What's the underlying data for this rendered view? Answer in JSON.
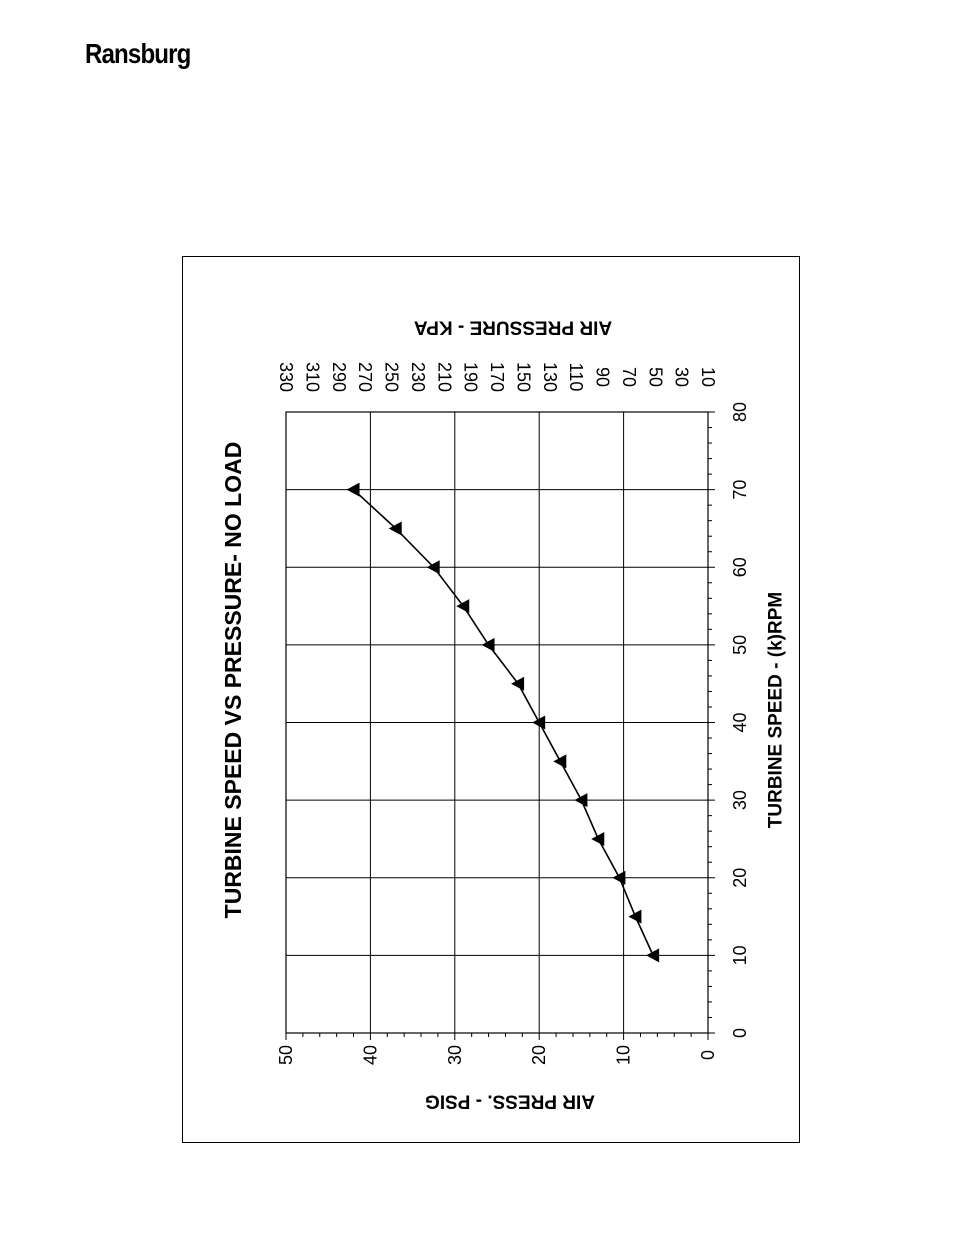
{
  "header": {
    "brand": "Ransburg"
  },
  "chart_data": {
    "type": "line",
    "title": "TURBINE SPEED VS PRESSURE- NO LOAD",
    "xlabel": "TURBINE SPEED - (k)RPM",
    "ylabel": "AIR PRESS. - PSIG",
    "y2label": "AIR PRESSURE - KPA",
    "xlim": [
      0,
      80
    ],
    "ylim": [
      0,
      50
    ],
    "x_ticks": [
      "0",
      "10",
      "20",
      "30",
      "40",
      "50",
      "60",
      "70",
      "80"
    ],
    "y_ticks": [
      "0",
      "10",
      "20",
      "30",
      "40",
      "50"
    ],
    "y2_ticks": [
      "10",
      "30",
      "50",
      "70",
      "90",
      "110",
      "130",
      "150",
      "170",
      "190",
      "210",
      "230",
      "250",
      "270",
      "290",
      "310",
      "330"
    ],
    "grid": true,
    "marker": "triangle",
    "orientation": "rotated-90-ccw",
    "series": [
      {
        "x": [
          10,
          15,
          20,
          25,
          30,
          35,
          40,
          45,
          50,
          55,
          60,
          65,
          70
        ],
        "y": [
          6.5,
          8.6,
          10.5,
          13,
          15,
          17.5,
          20,
          22.5,
          26,
          29,
          32.5,
          37,
          42
        ]
      }
    ]
  }
}
